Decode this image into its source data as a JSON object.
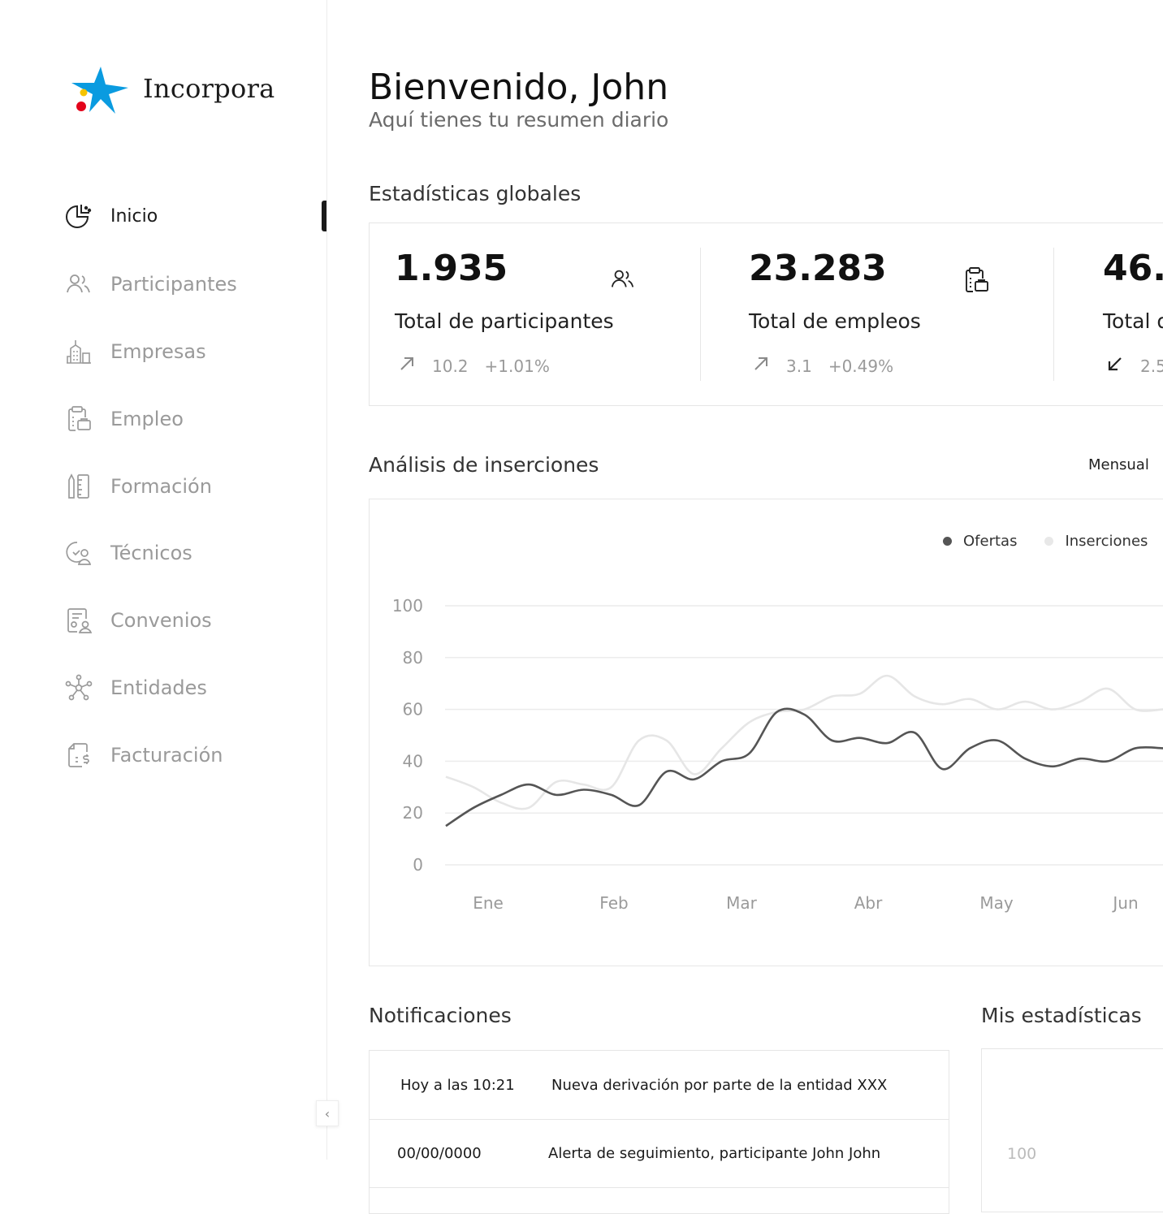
{
  "brand": {
    "name": "Incorpora"
  },
  "sidebar": {
    "items": [
      {
        "label": "Inicio",
        "icon": "chart-pie-icon",
        "active": true
      },
      {
        "label": "Participantes",
        "icon": "users-icon",
        "active": false
      },
      {
        "label": "Empresas",
        "icon": "buildings-icon",
        "active": false
      },
      {
        "label": "Empleo",
        "icon": "clipboard-briefcase-icon",
        "active": false
      },
      {
        "label": "Formación",
        "icon": "ruler-pencil-icon",
        "active": false
      },
      {
        "label": "Técnicos",
        "icon": "technician-icon",
        "active": false
      },
      {
        "label": "Convenios",
        "icon": "agreement-icon",
        "active": false
      },
      {
        "label": "Entidades",
        "icon": "network-icon",
        "active": false
      },
      {
        "label": "Facturación",
        "icon": "billing-icon",
        "active": false
      }
    ],
    "collapse_glyph": "‹"
  },
  "header": {
    "title": "Bienvenido, John",
    "subtitle": "Aquí tienes tu resumen diario"
  },
  "stats": {
    "section_title": "Estadísticas globales",
    "cards": [
      {
        "value": "1.935",
        "label": "Total de participantes",
        "trend_dir": "up",
        "trend_value": "10.2",
        "trend_pct": "+1.01%",
        "icon": "users-icon"
      },
      {
        "value": "23.283",
        "label": "Total de empleos",
        "trend_dir": "up",
        "trend_value": "3.1",
        "trend_pct": "+0.49%",
        "icon": "clipboard-briefcase-icon"
      },
      {
        "value": "46.",
        "label": "Total d",
        "trend_dir": "down",
        "trend_value": "2.5",
        "trend_pct": ""
      }
    ]
  },
  "analysis": {
    "section_title": "Análisis de inserciones",
    "period": "Mensual",
    "legend": [
      {
        "name": "Ofertas",
        "color": "#555555"
      },
      {
        "name": "Inserciones",
        "color": "#e8e8e8"
      }
    ]
  },
  "chart_data": {
    "type": "line",
    "x": [
      "Ene",
      "Ene",
      "Ene",
      "Ene",
      "Ene",
      "Feb",
      "Feb",
      "Feb",
      "Feb",
      "Feb",
      "Mar",
      "Mar",
      "Mar",
      "Mar",
      "Mar",
      "Abr",
      "Abr",
      "Abr",
      "Abr",
      "Abr",
      "May",
      "May",
      "May",
      "May",
      "May",
      "Jun",
      "Jun"
    ],
    "categories": [
      "Ene",
      "Feb",
      "Mar",
      "Abr",
      "May",
      "Jun"
    ],
    "series": [
      {
        "name": "Ofertas",
        "color": "#555555",
        "values": [
          15,
          22,
          27,
          31,
          27,
          29,
          27,
          23,
          36,
          33,
          40,
          43,
          59,
          58,
          48,
          49,
          47,
          51,
          37,
          45,
          48,
          41,
          38,
          41,
          40,
          45,
          45
        ]
      },
      {
        "name": "Inserciones",
        "color": "#e8e8e8",
        "values": [
          34,
          30,
          24,
          22,
          32,
          31,
          30,
          48,
          48,
          35,
          45,
          55,
          59,
          60,
          65,
          66,
          73,
          65,
          62,
          64,
          60,
          63,
          60,
          63,
          68,
          60,
          60
        ]
      }
    ],
    "yticks": [
      0,
      20,
      40,
      60,
      80,
      100
    ],
    "ylim": [
      0,
      100
    ],
    "grid": true,
    "legend_position": "top-right",
    "xlabel": "",
    "ylabel": "",
    "title": ""
  },
  "notifications": {
    "section_title": "Notificaciones",
    "items": [
      {
        "time": "Hoy a las 10:21",
        "text": "Nueva derivación por parte de la entidad XXX"
      },
      {
        "time": "00/00/0000",
        "text": "Alerta de seguimiento, participante John John"
      }
    ]
  },
  "my_stats": {
    "section_title": "Mis estadísticas",
    "first_tick": "100"
  }
}
